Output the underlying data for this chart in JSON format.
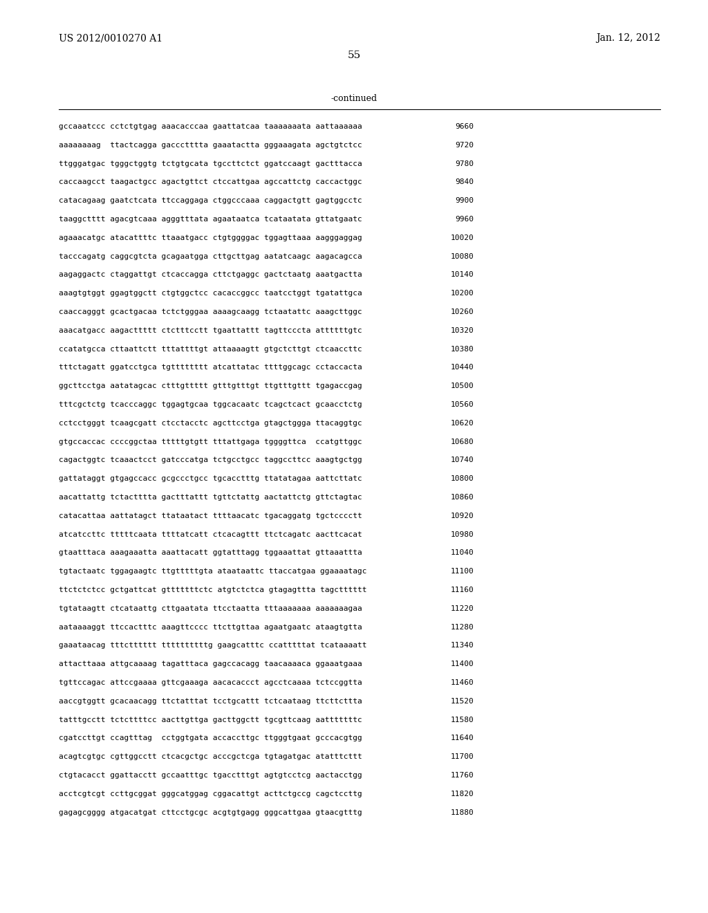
{
  "header_left": "US 2012/0010270 A1",
  "header_right": "Jan. 12, 2012",
  "page_number": "55",
  "continued_label": "-continued",
  "lines": [
    [
      "gccaaatccc cctctgtgag aaacacccaa gaattatcaa taaaaaaata aattaaaaaa",
      "9660"
    ],
    [
      "aaaaaaaag  ttactcagga gaccctttta gaaatactta gggaaagata agctgtctcc",
      "9720"
    ],
    [
      "ttgggatgac tgggctggtg tctgtgcata tgccttctct ggatccaagt gactttacca",
      "9780"
    ],
    [
      "caccaagcct taagactgcc agactgttct ctccattgaa agccattctg caccactggc",
      "9840"
    ],
    [
      "catacagaag gaatctcata ttccaggaga ctggcccaaa caggactgtt gagtggcctc",
      "9900"
    ],
    [
      "taaggctttt agacgtcaaa agggtttata agaataatca tcataatata gttatgaatc",
      "9960"
    ],
    [
      "agaaacatgc atacattttc ttaaatgacc ctgtggggac tggagttaaa aagggaggag",
      "10020"
    ],
    [
      "tacccagatg caggcgtcta gcagaatgga cttgcttgag aatatcaagc aagacagcca",
      "10080"
    ],
    [
      "aagaggactc ctaggattgt ctcaccagga cttctgaggc gactctaatg aaatgactta",
      "10140"
    ],
    [
      "aaagtgtggt ggagtggctt ctgtggctcc cacaccggcc taatcctggt tgatattgca",
      "10200"
    ],
    [
      "caaccagggt gcactgacaa tctctgggaa aaaagcaagg tctaatattc aaagcttggc",
      "10260"
    ],
    [
      "aaacatgacc aagacttttt ctctttcctt tgaattattt tagttcccta attttttgtc",
      "10320"
    ],
    [
      "ccatatgcca cttaattctt tttattttgt attaaaagtt gtgctcttgt ctcaaccttc",
      "10380"
    ],
    [
      "tttctagatt ggatcctgca tgtttttttt atcattatac ttttggcagc cctaccacta",
      "10440"
    ],
    [
      "ggcttcctga aatatagcac ctttgttttt gtttgtttgt ttgtttgttt tgagaccgag",
      "10500"
    ],
    [
      "tttcgctctg tcacccaggc tggagtgcaa tggcacaatc tcagctcact gcaacctctg",
      "10560"
    ],
    [
      "cctcctgggt tcaagcgatt ctcctacctc agcttcctga gtagctggga ttacaggtgc",
      "10620"
    ],
    [
      "gtgccaccac ccccggctaa tttttgtgtt tttattgaga tggggttca  ccatgttggc",
      "10680"
    ],
    [
      "cagactggtc tcaaactcct gatcccatga tctgcctgcc taggccttcc aaagtgctgg",
      "10740"
    ],
    [
      "gattataggt gtgagccacc gcgccctgcc tgcacctttg ttatatagaa aattcttatc",
      "10800"
    ],
    [
      "aacattattg tctactttta gactttattt tgttctattg aactattctg gttctagtac",
      "10860"
    ],
    [
      "catacattaa aattatagct ttataatact ttttaacatc tgacaggatg tgctcccctt",
      "10920"
    ],
    [
      "atcatccttc tttttcaata ttttatcatt ctcacagttt ttctcagatc aacttcacat",
      "10980"
    ],
    [
      "gtaatttaca aaagaaatta aaattacatt ggtatttagg tggaaattat gttaaattta",
      "11040"
    ],
    [
      "tgtactaatc tggagaagtc ttgtttttgta ataataattc ttaccatgaa ggaaaatagc",
      "11100"
    ],
    [
      "ttctctctcc gctgattcat gtttttttctc atgtctctca gtagagttta tagctttttt",
      "11160"
    ],
    [
      "tgtataagtt ctcataattg cttgaatata ttcctaatta tttaaaaaaa aaaaaaagaa",
      "11220"
    ],
    [
      "aataaaaggt ttccactttc aaagttcccc ttcttgttaa agaatgaatc ataagtgtta",
      "11280"
    ],
    [
      "gaaataacag tttctttttt ttttttttttg gaagcatttc ccatttttat tcataaaatt",
      "11340"
    ],
    [
      "attacttaaa attgcaaaag tagatttaca gagccacagg taacaaaaca ggaaatgaaa",
      "11400"
    ],
    [
      "tgttccagac attccgaaaa gttcgaaaga aacacaccct agcctcaaaa tctccggtta",
      "11460"
    ],
    [
      "aaccgtggtt gcacaacagg ttctatttat tcctgcattt tctcaataag ttcttcttta",
      "11520"
    ],
    [
      "tatttgcctt tctcttttcc aacttgttga gacttggctt tgcgttcaag aatttttttc",
      "11580"
    ],
    [
      "cgatccttgt ccagtttag  cctggtgata accaccttgc ttgggtgaat gcccacgtgg",
      "11640"
    ],
    [
      "acagtcgtgc cgttggcctt ctcacgctgc acccgctcga tgtagatgac atatttcttt",
      "11700"
    ],
    [
      "ctgtacacct ggattacctt gccaatttgc tgacctttgt agtgtcctcg aactacctgg",
      "11760"
    ],
    [
      "acctcgtcgt ccttgcggat gggcatggag cggacattgt acttctgccg cagctccttg",
      "11820"
    ],
    [
      "gagagcgggg atgacatgat cttcctgcgc acgtgtgagg gggcattgaa gtaacgtttg",
      "11880"
    ]
  ],
  "background_color": "#ffffff",
  "text_color": "#000000"
}
